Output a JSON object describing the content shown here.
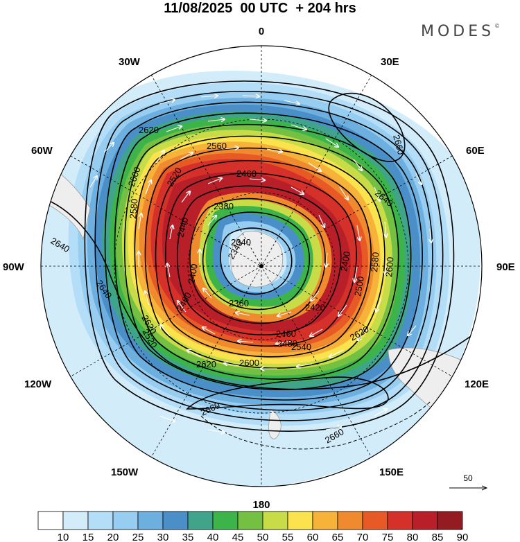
{
  "header": {
    "title": "11/08/2025  00 UTC  + 204 hrs",
    "brand": "MODES",
    "brand_mark": "©"
  },
  "map": {
    "projection": "south-polar-stereographic",
    "longitude_labels": {
      "top": "0",
      "top_right": "30E",
      "right_upper": "60E",
      "right": "90E",
      "right_lower": "120E",
      "bottom_right": "150E",
      "bottom": "180",
      "bottom_left": "150W",
      "left_lower": "120W",
      "left": "90W",
      "left_upper": "60W",
      "top_left": "30W"
    },
    "contour_labels": [
      "2340",
      "2340",
      "2360",
      "2380",
      "2400",
      "2400",
      "2420",
      "2440",
      "2460",
      "2460",
      "2460",
      "2480",
      "2500",
      "2520",
      "2520",
      "2540",
      "2560",
      "2580",
      "2580",
      "2600",
      "2600",
      "2600",
      "2620",
      "2620",
      "2620",
      "2620",
      "2640",
      "2640",
      "2640",
      "2660",
      "2660",
      "2660"
    ],
    "wind_reference": {
      "value": "50",
      "icon": "arrow-right-icon"
    }
  },
  "colorbar": {
    "levels": [
      "10",
      "15",
      "20",
      "25",
      "30",
      "35",
      "40",
      "45",
      "50",
      "55",
      "60",
      "65",
      "70",
      "75",
      "80",
      "85",
      "90"
    ],
    "colors": [
      "#ffffff",
      "#d2ecfa",
      "#b4def7",
      "#96cdf0",
      "#6db0e0",
      "#4a8fc8",
      "#3fa48a",
      "#3cb44a",
      "#74c043",
      "#c8dc48",
      "#fae34d",
      "#f7b23a",
      "#f08a2e",
      "#e85a25",
      "#d6302a",
      "#b91f29",
      "#941b22"
    ]
  }
}
